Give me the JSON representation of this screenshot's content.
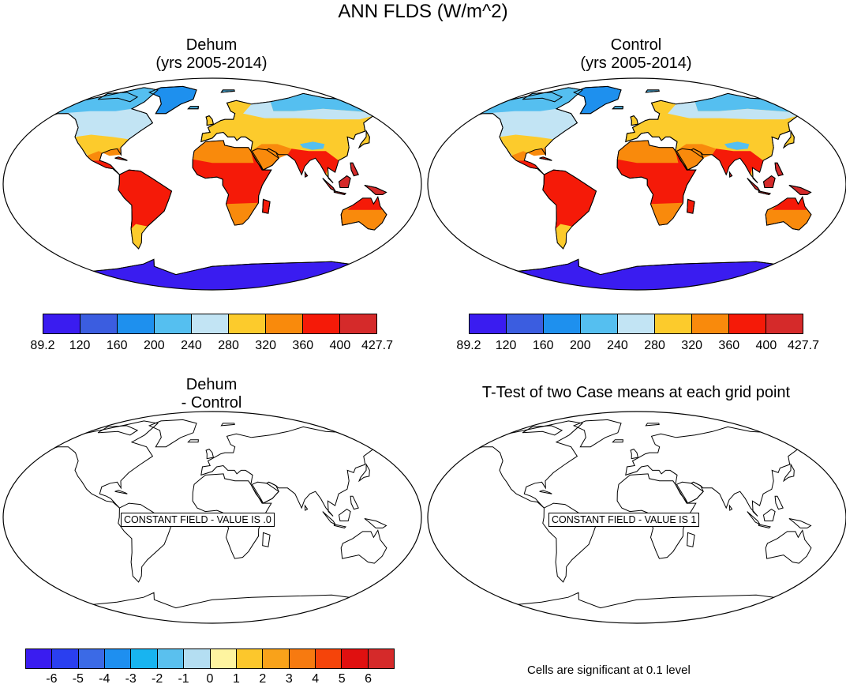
{
  "title": "ANN FLDS (W/m^2)",
  "panels": {
    "dehum": {
      "title_line1": "Dehum",
      "title_line2": "(yrs 2005-2014)"
    },
    "control": {
      "title_line1": "Control",
      "title_line2": "(yrs 2005-2014)"
    },
    "diff": {
      "title_line1": "Dehum",
      "title_line2": "- Control",
      "constant_label": "CONSTANT FIELD - VALUE IS .0"
    },
    "ttest": {
      "title_line1": "T-Test of two Case means at each grid point",
      "constant_label": "CONSTANT FIELD - VALUE IS 1"
    }
  },
  "colorbar_abs": {
    "ticks": [
      "89.2",
      "120",
      "160",
      "200",
      "240",
      "280",
      "320",
      "360",
      "400",
      "427.7"
    ],
    "colors": [
      "#3a1cf0",
      "#3b5de0",
      "#1e90ee",
      "#55bff0",
      "#c2e4f4",
      "#fccb2c",
      "#f98a0c",
      "#f51a08",
      "#d52a2a"
    ]
  },
  "colorbar_diff": {
    "ticks": [
      "-6",
      "-5",
      "-4",
      "-3",
      "-2",
      "-1",
      "0",
      "1",
      "2",
      "3",
      "4",
      "5",
      "6"
    ],
    "colors": [
      "#3a1cf0",
      "#2a3ff0",
      "#3b6ae6",
      "#1e8ff0",
      "#18b4f0",
      "#5ac0ee",
      "#b4def2",
      "#fef4a0",
      "#fcc72c",
      "#f9a21a",
      "#f77a10",
      "#f5440a",
      "#e01010",
      "#d52a2a"
    ]
  },
  "footnote": "Cells are significant at 0.1 level"
}
